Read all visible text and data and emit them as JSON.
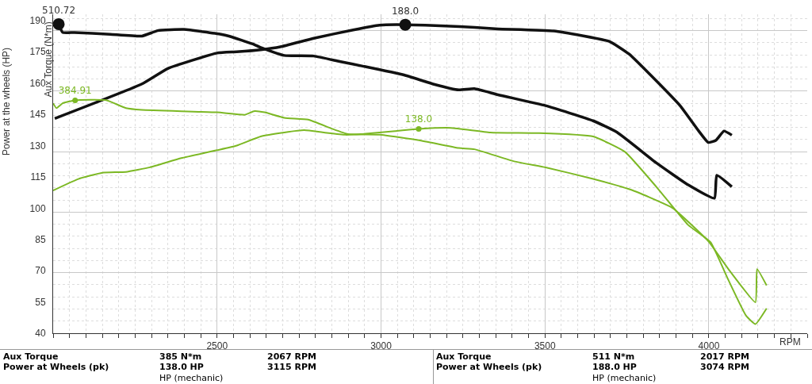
{
  "chart_data": {
    "type": "line",
    "ylabel": "Power at the wheels (HP)",
    "y2label": "Aux Torque (N*m)",
    "xlabel": "RPM",
    "xlim": [
      2000,
      4300
    ],
    "xticks": [
      2500,
      3000,
      3500,
      4000
    ],
    "ylim": [
      40,
      193
    ],
    "yticks": [
      40,
      55,
      70,
      85,
      100,
      115,
      130,
      145,
      160,
      175,
      190
    ],
    "y2lim": [
      0,
      527
    ],
    "y2ticks": [
      {
        "value": 100,
        "label": null
      },
      {
        "value": 200,
        "label": null
      },
      {
        "value": 300,
        "label": null
      },
      {
        "value": 400,
        "label": null
      },
      {
        "value": 500,
        "label": null
      }
    ],
    "grid": true,
    "marker": "none",
    "line_style": "solid",
    "series": [
      {
        "color": "#111111",
        "axis": "y",
        "x": [
          2005,
          2271,
          2350,
          2500,
          2560,
          2633,
          2693,
          2795,
          2915,
          2995,
          3074,
          3196,
          3285,
          3357,
          3527,
          3696,
          3756,
          3840,
          3913,
          3969,
          3998,
          4022,
          4046,
          4070
        ],
        "values": [
          143,
          159.6,
          167,
          174.4,
          175,
          176,
          177.4,
          181.5,
          185.5,
          187.8,
          188.0,
          187.4,
          186.7,
          186,
          185,
          180,
          174,
          161,
          149,
          137,
          131.5,
          132.6,
          137,
          135
        ],
        "value_labels": [
          null,
          null,
          null,
          null,
          null,
          null,
          null,
          null,
          null,
          null,
          "188.0",
          null,
          null,
          null,
          null,
          null,
          null,
          null,
          null,
          null,
          null,
          null,
          null,
          null
        ]
      },
      {
        "color": "#111111",
        "axis": "y2",
        "x": [
          2017,
          2029,
          2065,
          2174,
          2271,
          2319,
          2399,
          2512,
          2536,
          2609,
          2633,
          2705,
          2795,
          2874,
          2947,
          3068,
          3164,
          3237,
          3285,
          3357,
          3502,
          3647,
          3720,
          3841,
          3937,
          4017,
          4024,
          4070
        ],
        "values": [
          510.72,
          497,
          497,
          494,
          491,
          500,
          502,
          494,
          491,
          478,
          472,
          459,
          458,
          449,
          441,
          427,
          411,
          402,
          404,
          394,
          376,
          351,
          332,
          281,
          245,
          223,
          261,
          242
        ],
        "value_labels": [
          "510.72",
          null,
          null,
          null,
          null,
          null,
          null,
          null,
          null,
          null,
          null,
          null,
          null,
          null,
          null,
          null,
          null,
          null,
          null,
          null,
          null,
          null,
          null,
          null,
          null,
          null,
          null,
          null
        ]
      },
      {
        "color": "#7cb824",
        "axis": "y2",
        "x": [
          2000,
          2010,
          2029,
          2067,
          2162,
          2222,
          2271,
          2500,
          2585,
          2614,
          2645,
          2705,
          2778,
          2850,
          2899,
          2995,
          3116,
          3237,
          3285,
          3406,
          3502,
          3647,
          3768,
          3889,
          3961,
          4000,
          4065,
          4142,
          4147,
          4176
        ],
        "values": [
          380,
          372,
          380,
          384.91,
          385,
          372,
          369,
          365,
          361,
          367,
          365,
          356,
          353,
          338,
          329,
          328,
          319,
          306,
          304,
          284,
          274,
          255,
          236,
          207,
          172,
          151,
          102,
          51,
          106,
          79
        ],
        "value_labels": [
          null,
          null,
          null,
          "384.91",
          null,
          null,
          null,
          null,
          null,
          null,
          null,
          null,
          null,
          null,
          null,
          null,
          null,
          null,
          null,
          null,
          null,
          null,
          null,
          null,
          null,
          null,
          null,
          null,
          null,
          null
        ]
      },
      {
        "color": "#7cb824",
        "axis": "y",
        "x": [
          2000,
          2077,
          2150,
          2222,
          2295,
          2391,
          2500,
          2560,
          2633,
          2705,
          2766,
          2826,
          2891,
          2947,
          3043,
          3115,
          3213,
          3333,
          3478,
          3647,
          3744,
          3841,
          3937,
          4005,
          4058,
          4113,
          4142,
          4176
        ],
        "values": [
          108.5,
          114,
          117,
          117.4,
          119.6,
          124,
          127.8,
          130,
          134.4,
          136.3,
          137.4,
          136.3,
          135.2,
          135.6,
          137,
          138.0,
          138.5,
          136.3,
          136,
          134.4,
          127,
          110,
          91.9,
          83.7,
          66,
          48.5,
          44.4,
          51.9
        ],
        "value_labels": [
          null,
          null,
          null,
          null,
          null,
          null,
          null,
          null,
          null,
          null,
          null,
          null,
          null,
          null,
          null,
          "138.0",
          null,
          null,
          null,
          null,
          null,
          null,
          null,
          null,
          null,
          null,
          null,
          null
        ]
      }
    ],
    "annotations": [
      "Aux Torque",
      "385 N*m",
      "2067 RPM",
      "Power at Wheels  (pk)",
      "138.0 HP",
      "3115 RPM",
      "HP (mechanic)",
      "Aux Torque",
      "511 N*m",
      "2017 RPM",
      "Power at Wheels  (pk)",
      "188.0 HP",
      "3074 RPM",
      "HP (mechanic)"
    ]
  }
}
